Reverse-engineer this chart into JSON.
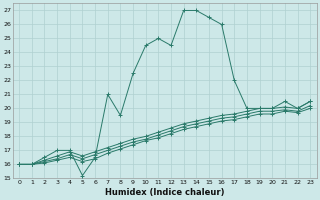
{
  "xlabel": "Humidex (Indice chaleur)",
  "bg_color": "#cde8e8",
  "grid_color": "#b0d0d0",
  "line_color": "#2a7a6a",
  "xlim": [
    -0.5,
    23.5
  ],
  "ylim": [
    15,
    27.5
  ],
  "xticks": [
    0,
    1,
    2,
    3,
    4,
    5,
    6,
    7,
    8,
    9,
    10,
    11,
    12,
    13,
    14,
    15,
    16,
    17,
    18,
    19,
    20,
    21,
    22,
    23
  ],
  "yticks": [
    15,
    16,
    17,
    18,
    19,
    20,
    21,
    22,
    23,
    24,
    25,
    26,
    27
  ],
  "series": [
    {
      "x": [
        0,
        1,
        2,
        3,
        4,
        5,
        6,
        7,
        8,
        9,
        10,
        11,
        12,
        13,
        14,
        15,
        16,
        17,
        18,
        19,
        20,
        21,
        22,
        23
      ],
      "y": [
        16,
        16,
        16.5,
        17,
        17,
        15.2,
        16.5,
        21,
        19.5,
        22.5,
        24.5,
        25,
        24.5,
        27,
        27,
        26.5,
        26,
        22,
        20,
        20,
        20,
        20.5,
        20,
        20.5
      ],
      "linestyle": "-",
      "marker": "+"
    },
    {
      "x": [
        0,
        1,
        2,
        3,
        4,
        5,
        6,
        7,
        8,
        9,
        10,
        11,
        12,
        13,
        14,
        15,
        16,
        17,
        18,
        19,
        20,
        21,
        22,
        23
      ],
      "y": [
        16,
        16,
        16.3,
        16.6,
        16.9,
        16.6,
        16.9,
        17.2,
        17.5,
        17.8,
        18.0,
        18.3,
        18.6,
        18.9,
        19.1,
        19.3,
        19.5,
        19.6,
        19.8,
        20.0,
        20.0,
        20.1,
        20.0,
        20.5
      ],
      "linestyle": "-",
      "marker": "+"
    },
    {
      "x": [
        0,
        1,
        2,
        3,
        4,
        5,
        6,
        7,
        8,
        9,
        10,
        11,
        12,
        13,
        14,
        15,
        16,
        17,
        18,
        19,
        20,
        21,
        22,
        23
      ],
      "y": [
        16,
        16,
        16.2,
        16.4,
        16.7,
        16.4,
        16.7,
        17.0,
        17.3,
        17.6,
        17.8,
        18.1,
        18.4,
        18.7,
        18.9,
        19.1,
        19.3,
        19.4,
        19.6,
        19.8,
        19.8,
        19.9,
        19.8,
        20.2
      ],
      "linestyle": "-",
      "marker": "+"
    },
    {
      "x": [
        0,
        1,
        2,
        3,
        4,
        5,
        6,
        7,
        8,
        9,
        10,
        11,
        12,
        13,
        14,
        15,
        16,
        17,
        18,
        19,
        20,
        21,
        22,
        23
      ],
      "y": [
        16,
        16,
        16.1,
        16.3,
        16.5,
        16.2,
        16.4,
        16.8,
        17.1,
        17.4,
        17.7,
        17.9,
        18.2,
        18.5,
        18.7,
        18.9,
        19.1,
        19.2,
        19.4,
        19.6,
        19.6,
        19.8,
        19.7,
        20.0
      ],
      "linestyle": "-",
      "marker": "+"
    }
  ]
}
